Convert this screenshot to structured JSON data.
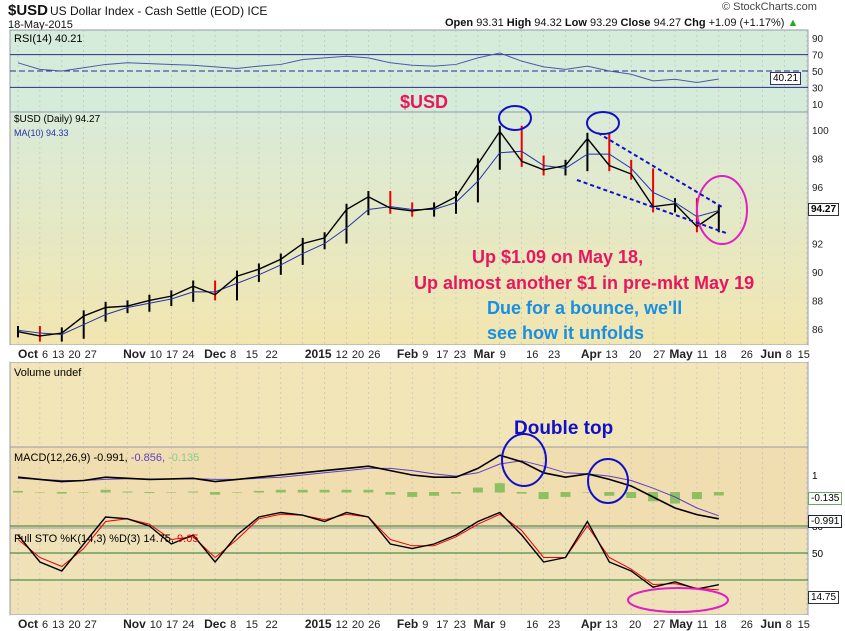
{
  "header": {
    "symbol": "$USD",
    "name": "US Dollar Index - Cash Settle (EOD) ICE",
    "date": "18-May-2015",
    "brand": "© StockCharts.com",
    "quote": {
      "open_label": "Open",
      "open": "93.31",
      "high_label": "High",
      "high": "94.32",
      "low_label": "Low",
      "low": "93.29",
      "close_label": "Close",
      "close": "94.27",
      "chg_label": "Chg",
      "chg": "+1.09 (+1.17%)"
    }
  },
  "panels": {
    "rsi_label": "RSI(14) 40.21",
    "rsi_value": "40.21",
    "price_label": "$USD (Daily) 94.27",
    "ma_label": "MA(10) 94.33",
    "price_value": "94.27",
    "volume_label": "Volume undef",
    "macd_label": "MACD(12,26,9) -0.991,",
    "macd_signal": "-0.856,",
    "macd_hist": "-0.135",
    "macd_value": "-0.991",
    "macd_hist_value": "-0.135",
    "sto_label": "Full STO %K(14,3) %D(3) 14.75,",
    "sto_d": "9.05",
    "sto_value": "14.75"
  },
  "annotations": {
    "title": "$USD",
    "line1": "Up $1.09 on May 18,",
    "line2": "Up almost another $1 in pre-mkt May 19",
    "line3": "Due for a bounce, we'll",
    "line4": "see how it unfolds",
    "double_top": "Double top"
  },
  "colors": {
    "pink": "#e8175d",
    "blue": "#1a8fe0",
    "navy": "#1010c8",
    "magenta": "#e020c0"
  },
  "chart_data": {
    "type": "line",
    "x_weeks": [
      0,
      1,
      2,
      3,
      4,
      5,
      6,
      7,
      8,
      9,
      10,
      11,
      12,
      13,
      14,
      15,
      16,
      17,
      18,
      19,
      20,
      21,
      22,
      23,
      24,
      25,
      26,
      27,
      28,
      29,
      30,
      31,
      32
    ],
    "price_close": [
      85.8,
      85.5,
      85.7,
      86.9,
      87.5,
      87.6,
      88.0,
      88.3,
      89.0,
      88.4,
      89.7,
      90.2,
      90.9,
      92.0,
      92.4,
      94.4,
      95.3,
      94.5,
      94.3,
      94.5,
      95.3,
      97.6,
      99.9,
      97.8,
      97.2,
      97.5,
      99.4,
      97.5,
      96.9,
      94.6,
      94.8,
      93.2,
      94.27
    ],
    "ma10": [
      85.9,
      85.7,
      85.6,
      86.3,
      87.0,
      87.5,
      87.8,
      88.1,
      88.6,
      88.6,
      89.2,
      89.8,
      90.5,
      91.3,
      92.0,
      93.1,
      94.4,
      94.6,
      94.4,
      94.4,
      94.9,
      96.4,
      98.4,
      98.5,
      97.5,
      97.3,
      98.3,
      98.3,
      97.3,
      95.6,
      94.9,
      93.9,
      94.33
    ],
    "rsi": [
      60,
      52,
      50,
      54,
      58,
      60,
      59,
      58,
      57,
      55,
      53,
      56,
      58,
      64,
      66,
      68,
      66,
      60,
      57,
      56,
      58,
      66,
      72,
      62,
      55,
      52,
      56,
      50,
      46,
      38,
      40,
      36,
      40.21
    ],
    "macd": [
      0.9,
      0.8,
      0.7,
      0.75,
      0.9,
      0.85,
      0.8,
      0.82,
      0.85,
      0.7,
      0.8,
      0.9,
      1.0,
      1.1,
      1.2,
      1.3,
      1.4,
      1.2,
      1.0,
      0.9,
      0.9,
      1.3,
      1.9,
      1.6,
      1.1,
      0.9,
      1.05,
      0.8,
      0.5,
      0,
      -0.5,
      -0.8,
      -0.991
    ],
    "macd_signal": [
      0.85,
      0.8,
      0.75,
      0.75,
      0.8,
      0.83,
      0.82,
      0.82,
      0.83,
      0.8,
      0.8,
      0.85,
      0.9,
      1.0,
      1.1,
      1.2,
      1.3,
      1.3,
      1.2,
      1.05,
      0.95,
      1.1,
      1.5,
      1.65,
      1.4,
      1.1,
      1.05,
      0.95,
      0.75,
      0.4,
      0,
      -0.5,
      -0.856
    ],
    "sto_k": [
      70,
      40,
      30,
      60,
      90,
      88,
      80,
      60,
      70,
      40,
      70,
      90,
      95,
      92,
      85,
      95,
      90,
      60,
      55,
      60,
      70,
      85,
      95,
      70,
      40,
      45,
      85,
      40,
      30,
      12,
      18,
      10,
      14.75
    ],
    "sto_d": [
      65,
      45,
      35,
      55,
      85,
      88,
      82,
      65,
      68,
      45,
      65,
      88,
      93,
      92,
      87,
      93,
      90,
      65,
      58,
      58,
      68,
      82,
      93,
      75,
      45,
      45,
      80,
      45,
      32,
      15,
      16,
      11,
      9.05
    ],
    "price_axis": [
      100,
      98,
      96,
      94,
      92,
      90,
      88,
      86
    ],
    "rsi_axis": [
      90,
      70,
      50,
      30,
      10
    ],
    "macd_axis": [
      1
    ],
    "sto_axis": [
      80,
      50
    ],
    "date_labels": [
      [
        "Oct",
        0
      ],
      [
        "6",
        0.25
      ],
      [
        "13",
        1
      ],
      [
        "20",
        1.6
      ],
      [
        "27",
        2.3
      ],
      [
        "Nov",
        4.8
      ],
      [
        "10",
        5.5
      ],
      [
        "17",
        6.3
      ],
      [
        "24",
        7.2
      ],
      [
        "Dec",
        8.5
      ],
      [
        "8",
        9.5
      ],
      [
        "15",
        10.4
      ],
      [
        "22",
        11.3
      ],
      [
        "2015",
        13.1
      ],
      [
        "12",
        14.2
      ],
      [
        "20",
        15.1
      ],
      [
        "26",
        15.9
      ],
      [
        "Feb",
        17.3
      ],
      [
        "9",
        18.1
      ],
      [
        "17",
        19.1
      ],
      [
        "23",
        19.9
      ],
      [
        "Mar",
        20.8
      ],
      [
        "9",
        22.0
      ],
      [
        "16",
        23.2
      ],
      [
        "23",
        24.2
      ],
      [
        "Apr",
        25.7
      ],
      [
        "13",
        26.7
      ],
      [
        "20",
        27.9
      ],
      [
        "27",
        29.0
      ],
      [
        "May",
        29.7
      ],
      [
        "11",
        30.8
      ],
      [
        "18",
        31.8
      ],
      [
        "26",
        33.0
      ],
      [
        "Jun",
        33.9
      ],
      [
        "8",
        34.8
      ],
      [
        "15",
        35.6
      ]
    ]
  }
}
